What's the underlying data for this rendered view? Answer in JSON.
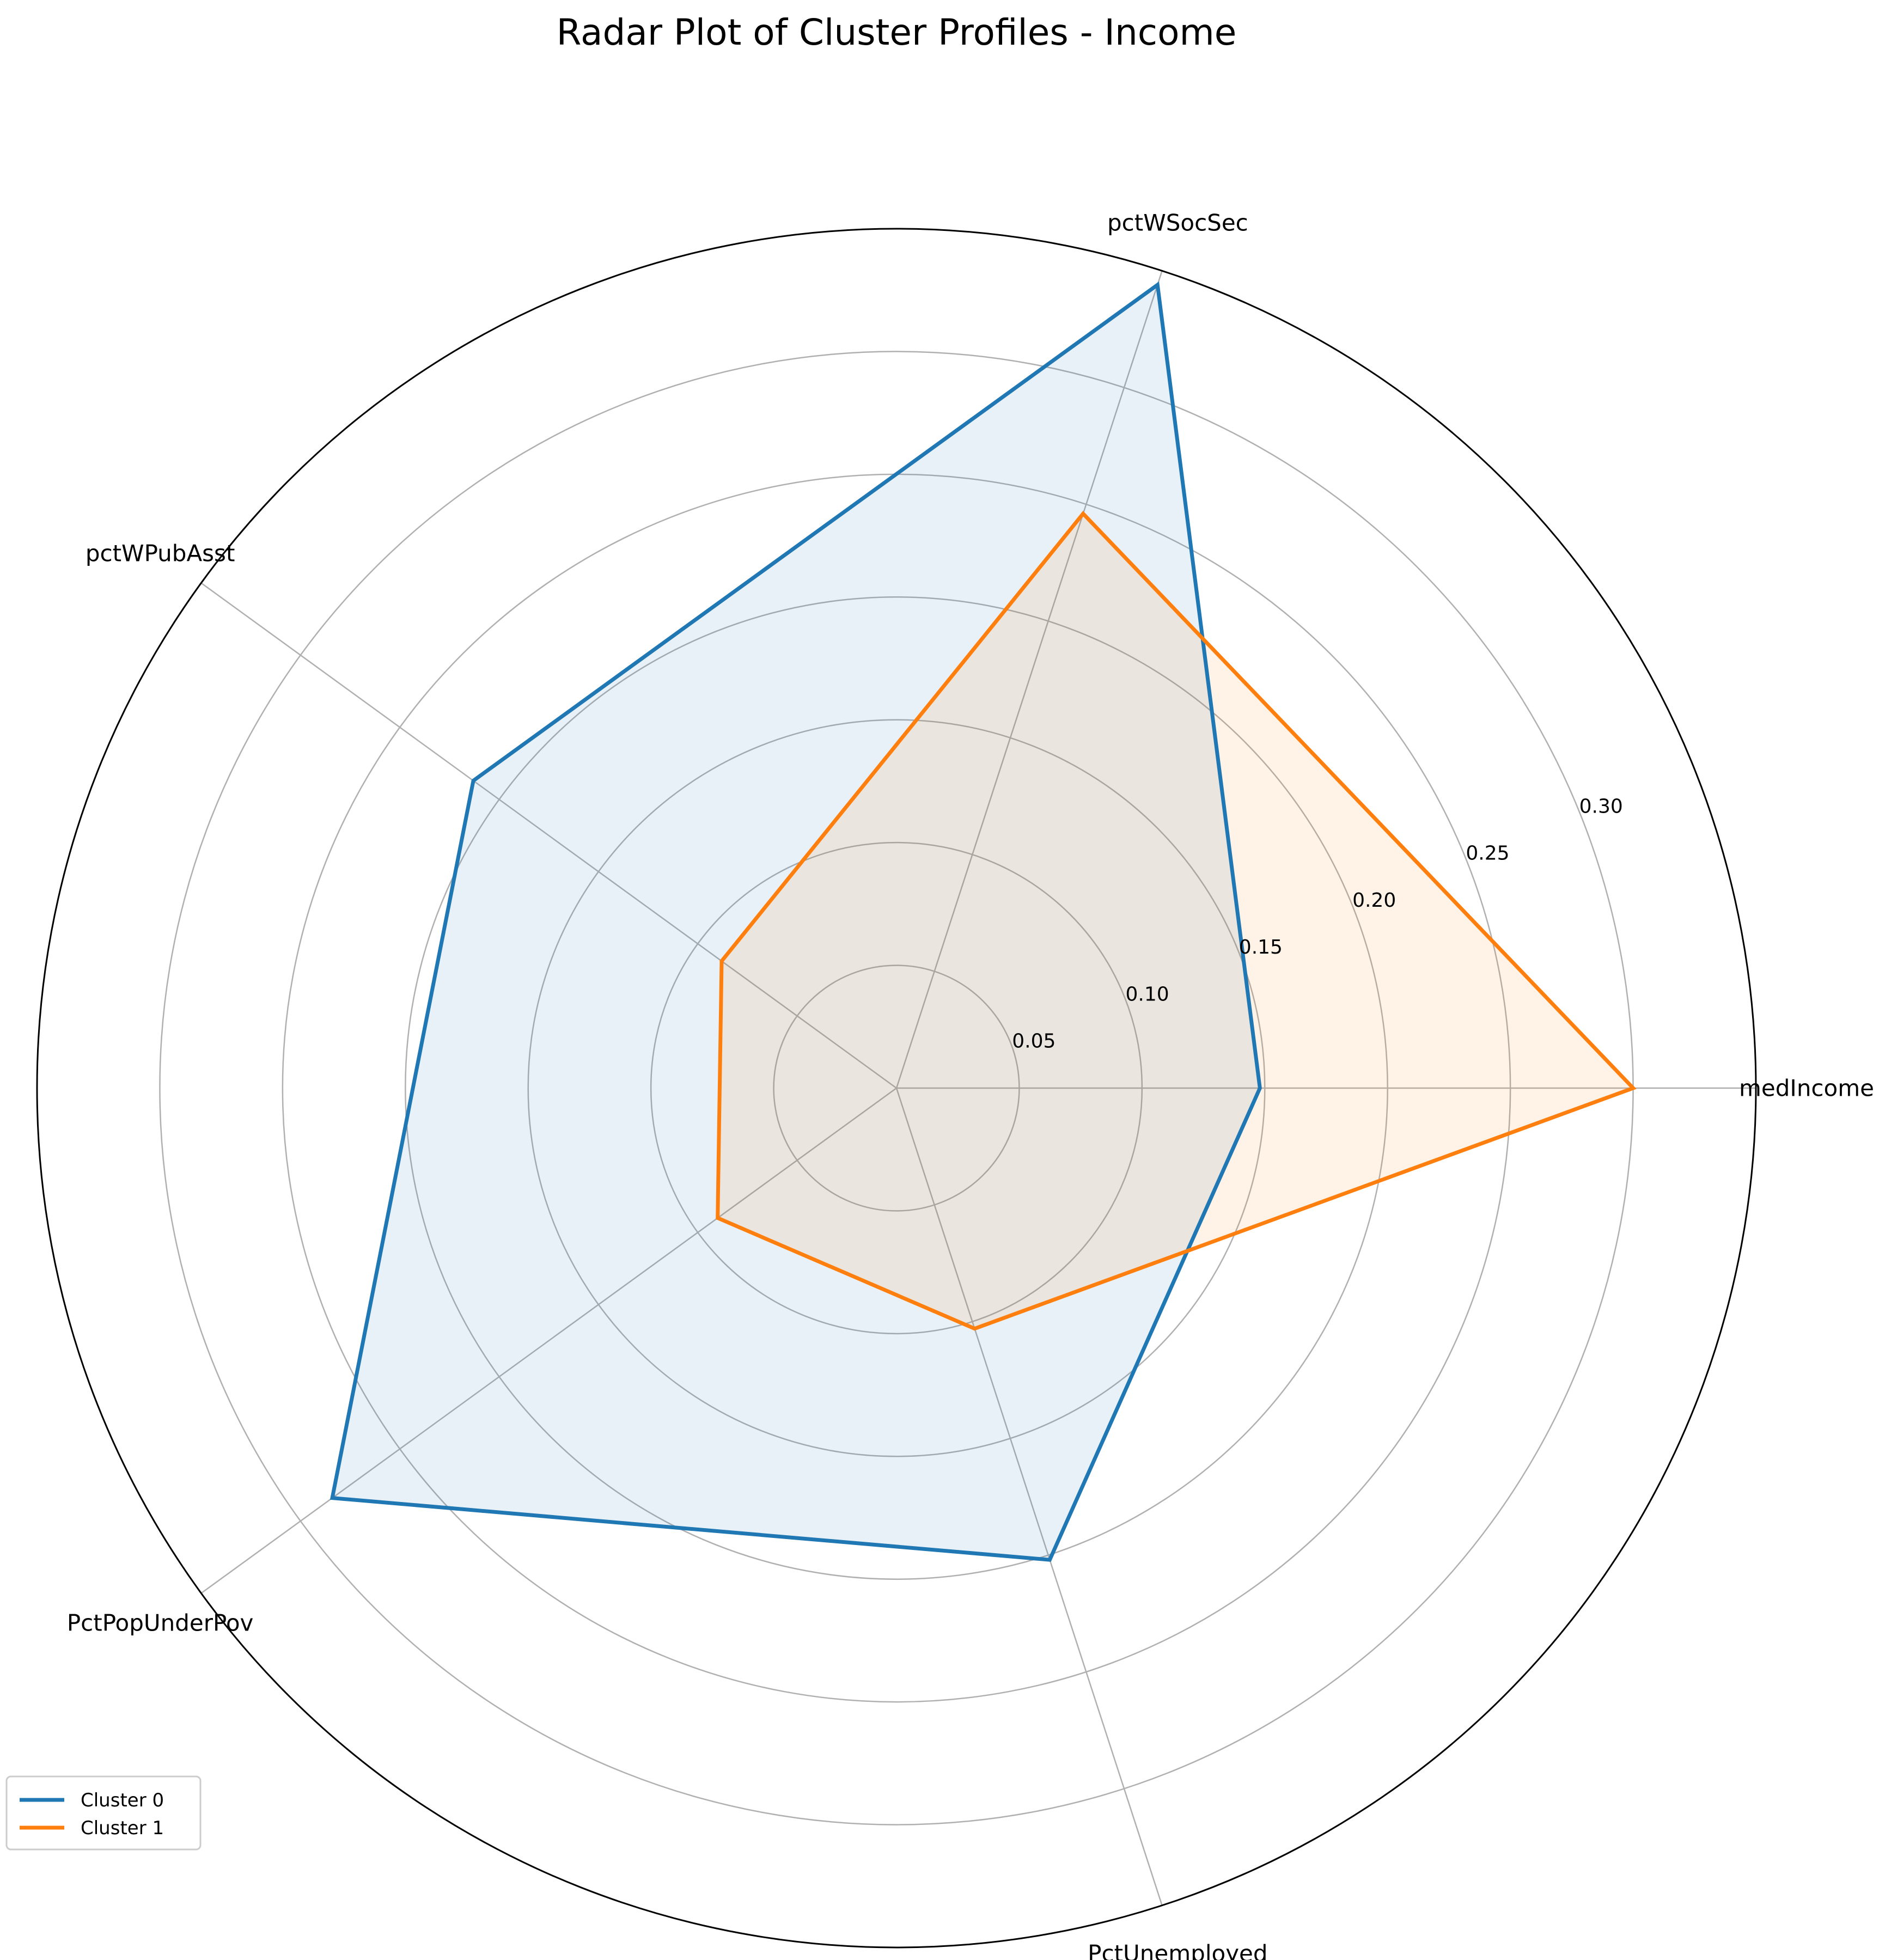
{
  "chart_data": {
    "type": "radar",
    "title": "Radar Plot of Cluster Profiles - Income",
    "categories": [
      "medIncome",
      "pctWSocSec",
      "pctWPubAsst",
      "PctPopUnderPov",
      "PctUnemployed"
    ],
    "rlim": [
      0,
      0.35
    ],
    "rticks": [
      "0.05",
      "0.10",
      "0.15",
      "0.20",
      "0.25",
      "0.30"
    ],
    "rtick_values": [
      0.05,
      0.1,
      0.15,
      0.2,
      0.25,
      0.3
    ],
    "grid": true,
    "legend_position": "lower-left",
    "series": [
      {
        "name": "Cluster 0",
        "color": "#1f77b4",
        "fill": "#1f77b4",
        "values": [
          0.148,
          0.344,
          0.213,
          0.284,
          0.202
        ]
      },
      {
        "name": "Cluster 1",
        "color": "#ff7f0e",
        "fill": "#ff7f0e",
        "values": [
          0.3,
          0.246,
          0.088,
          0.09,
          0.103
        ]
      }
    ]
  }
}
